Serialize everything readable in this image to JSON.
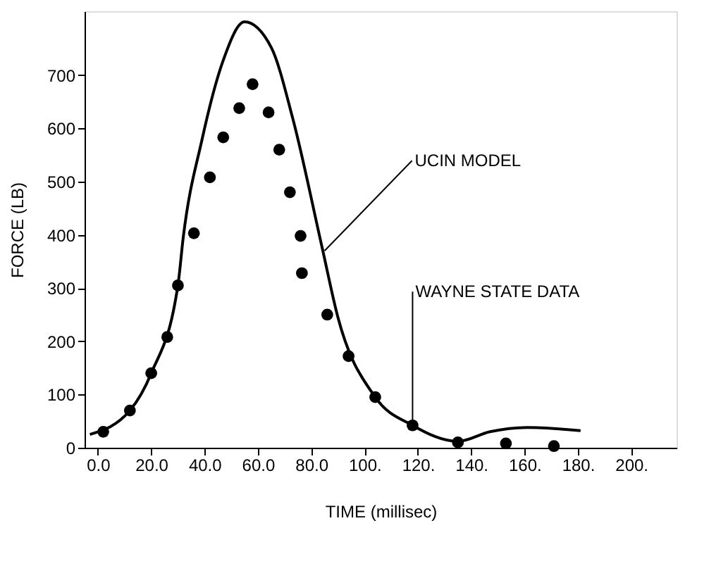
{
  "chart_data": {
    "type": "scatter",
    "xlabel": "TIME (millisec)",
    "ylabel": "FORCE (LB)",
    "xlim": [
      -5,
      217
    ],
    "ylim": [
      0,
      820
    ],
    "xticks": [
      {
        "value": 0,
        "label": "0.0"
      },
      {
        "value": 20,
        "label": "20.0"
      },
      {
        "value": 40,
        "label": "40.0"
      },
      {
        "value": 60,
        "label": "60.0"
      },
      {
        "value": 80,
        "label": "80.0"
      },
      {
        "value": 100,
        "label": "100."
      },
      {
        "value": 120,
        "label": "120."
      },
      {
        "value": 140,
        "label": "140."
      },
      {
        "value": 160,
        "label": "160."
      },
      {
        "value": 180,
        "label": "180."
      },
      {
        "value": 200,
        "label": "200."
      }
    ],
    "yticks": [
      0,
      100,
      200,
      300,
      400,
      500,
      600,
      700
    ],
    "grid": false,
    "marker": "circle",
    "series": [
      {
        "type": "line",
        "color": "#000000",
        "line_style": "solid",
        "marker": "none",
        "x": [
          -3,
          12,
          20,
          30,
          32,
          39,
          47,
          55,
          65,
          73,
          84,
          90,
          104,
          118,
          135,
          147,
          161,
          181
        ],
        "values": [
          25,
          70,
          140,
          305,
          395,
          578,
          728,
          800,
          752,
          620,
          378,
          245,
          95,
          42,
          12,
          30,
          38,
          32
        ]
      },
      {
        "color": "#000000",
        "x": [
          2,
          12,
          20,
          26,
          30,
          36,
          42,
          47,
          53,
          58,
          64,
          68,
          72,
          76,
          76.5,
          86,
          94,
          104,
          118,
          135,
          153,
          171
        ],
        "values": [
          30,
          70,
          140,
          208,
          305,
          403,
          508,
          583,
          638,
          683,
          630,
          560,
          480,
          398,
          328,
          250,
          172,
          95,
          42,
          10,
          8,
          3
        ]
      }
    ],
    "annotations": [
      {
        "text": "UCIN MODEL",
        "x": 85,
        "y": 370
      },
      {
        "text": "WAYNE STATE DATA",
        "x": 118,
        "y": 42
      }
    ]
  }
}
